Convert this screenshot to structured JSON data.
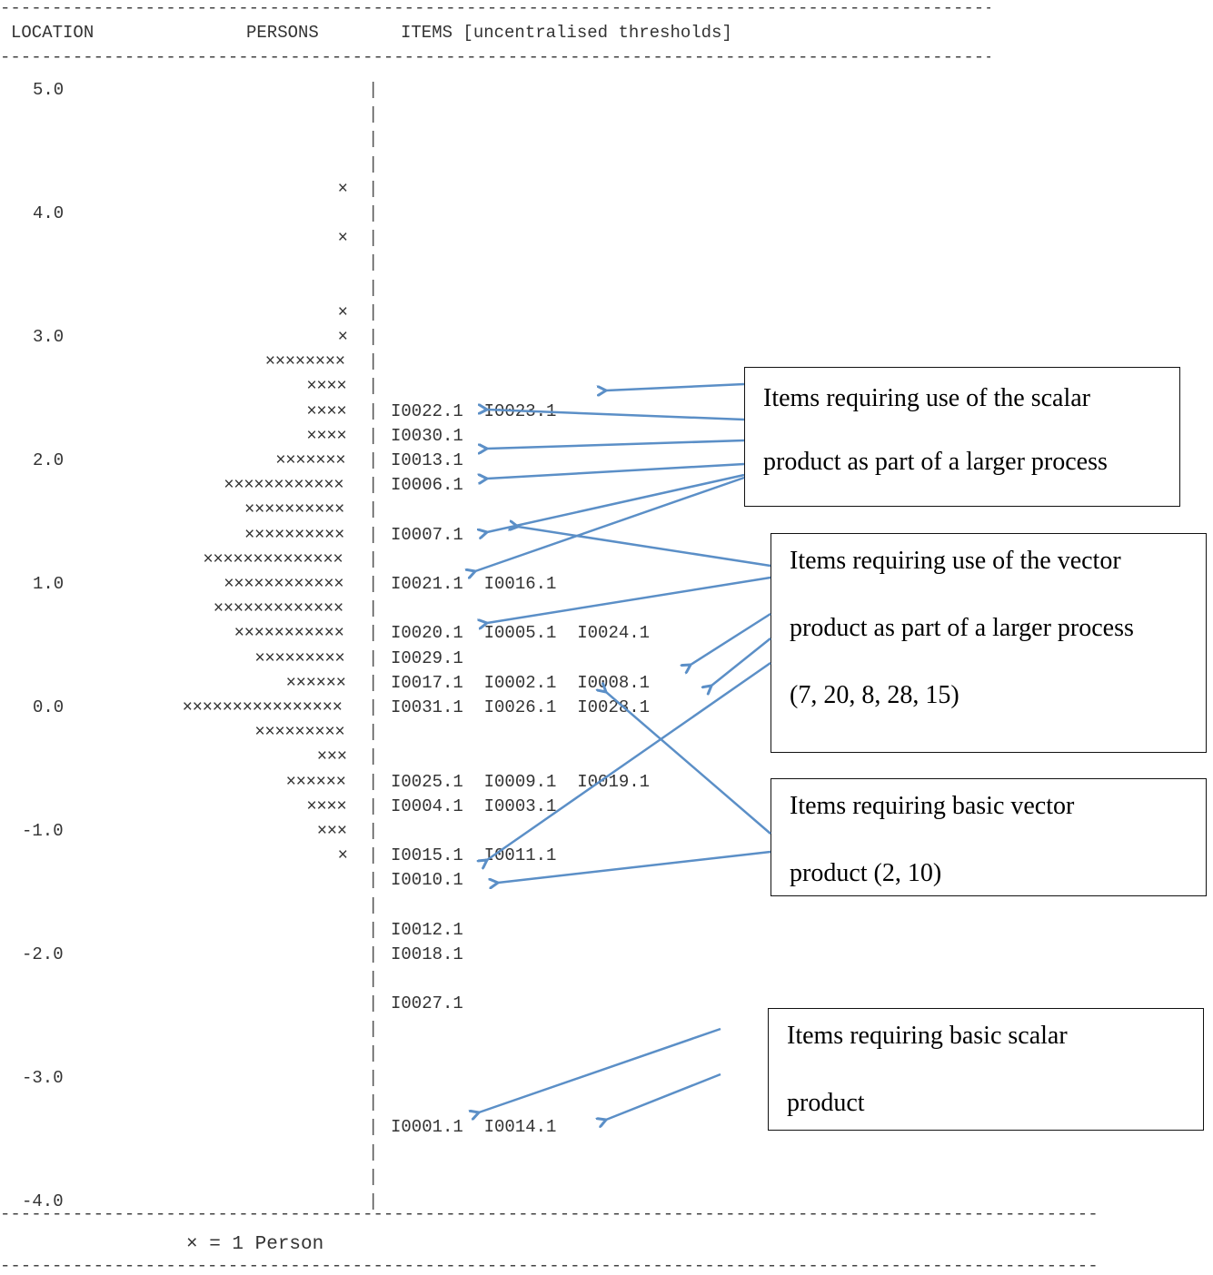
{
  "header": {
    "location_label": "LOCATION",
    "persons_label": "PERSONS",
    "items_label": "ITEMS [uncentralised thresholds]"
  },
  "footer": {
    "legend": "× = 1 Person"
  },
  "chart_data": {
    "type": "table",
    "ytick_labels": [
      "5.0",
      "4.0",
      "3.0",
      "2.0",
      "1.0",
      "0.0",
      "-1.0",
      "-2.0",
      "-3.0",
      "-4.0"
    ],
    "rows": [
      {
        "persons": "",
        "items": ""
      },
      {
        "persons": "",
        "items": ""
      },
      {
        "persons": "",
        "items": ""
      },
      {
        "persons": "",
        "items": ""
      },
      {
        "persons": "×",
        "items": ""
      },
      {
        "persons": "",
        "items": ""
      },
      {
        "persons": "×",
        "items": ""
      },
      {
        "persons": "",
        "items": ""
      },
      {
        "persons": "",
        "items": ""
      },
      {
        "persons": "×",
        "items": ""
      },
      {
        "persons": "×",
        "items": ""
      },
      {
        "persons": "××××××××",
        "items": ""
      },
      {
        "persons": "××××",
        "items": ""
      },
      {
        "persons": "××××",
        "items": "I0022.1  I0023.1"
      },
      {
        "persons": "××××",
        "items": "I0030.1"
      },
      {
        "persons": "×××××××",
        "items": "I0013.1"
      },
      {
        "persons": "××××××××××××",
        "items": "I0006.1"
      },
      {
        "persons": "××××××××××",
        "items": ""
      },
      {
        "persons": "××××××××××",
        "items": "I0007.1"
      },
      {
        "persons": "××××××××××××××",
        "items": ""
      },
      {
        "persons": "××××××××××××",
        "items": "I0021.1  I0016.1"
      },
      {
        "persons": "×××××××××××××",
        "items": ""
      },
      {
        "persons": "×××××××××××",
        "items": "I0020.1  I0005.1  I0024.1"
      },
      {
        "persons": "×××××××××",
        "items": "I0029.1"
      },
      {
        "persons": "××××××",
        "items": "I0017.1  I0002.1  I0008.1"
      },
      {
        "persons": "××××××××××××××××",
        "items": "I0031.1  I0026.1  I0028.1"
      },
      {
        "persons": "×××××××××",
        "items": ""
      },
      {
        "persons": "×××",
        "items": ""
      },
      {
        "persons": "××××××",
        "items": "I0025.1  I0009.1  I0019.1"
      },
      {
        "persons": "××××",
        "items": "I0004.1  I0003.1"
      },
      {
        "persons": "×××",
        "items": ""
      },
      {
        "persons": "×",
        "items": "I0015.1  I0011.1"
      },
      {
        "persons": "",
        "items": "I0010.1"
      },
      {
        "persons": "",
        "items": ""
      },
      {
        "persons": "",
        "items": "I0012.1"
      },
      {
        "persons": "",
        "items": "I0018.1"
      },
      {
        "persons": "",
        "items": ""
      },
      {
        "persons": "",
        "items": "I0027.1"
      },
      {
        "persons": "",
        "items": ""
      },
      {
        "persons": "",
        "items": ""
      },
      {
        "persons": "",
        "items": ""
      },
      {
        "persons": "",
        "items": ""
      },
      {
        "persons": "",
        "items": "I0001.1  I0014.1"
      },
      {
        "persons": "",
        "items": ""
      },
      {
        "persons": "",
        "items": ""
      },
      {
        "persons": "",
        "items": ""
      }
    ]
  },
  "callouts": [
    {
      "lines": [
        "Items requiring use of the scalar",
        "product as part of a larger process"
      ]
    },
    {
      "lines": [
        "Items requiring use of the vector",
        "product as part of a larger process",
        "(7, 20, 8, 28, 15)"
      ]
    },
    {
      "lines": [
        "Items requiring basic vector",
        "product (2, 10)"
      ]
    },
    {
      "lines": [
        "Items requiring basic scalar",
        "product"
      ]
    }
  ],
  "colors": {
    "arrow": "#5b8fc7",
    "text": "#333333",
    "callout_border": "#111111"
  }
}
